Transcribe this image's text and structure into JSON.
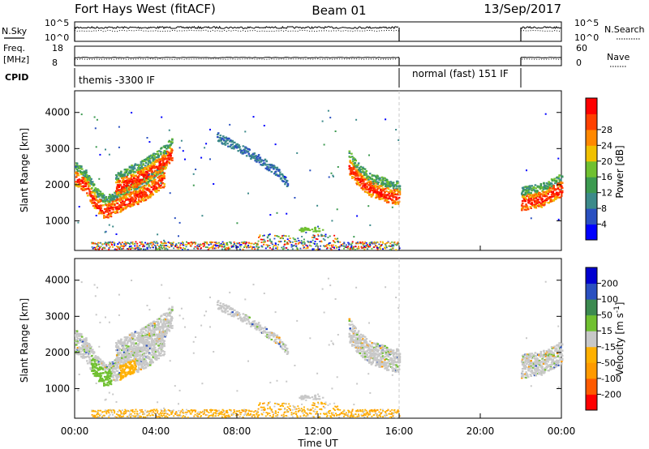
{
  "chart_data": {
    "type": "heatmap",
    "title": "Fort Hays West (fitACF)",
    "beam": "Beam 01",
    "date": "13/Sep/2017",
    "xlabel": "Time UT",
    "x_ticks": [
      "00:00",
      "04:00",
      "08:00",
      "12:00",
      "16:00",
      "20:00",
      "00:00"
    ],
    "x_range_hours": [
      0,
      24
    ],
    "top_panels": {
      "noise": {
        "left_label": "N.Sky",
        "right_label": "N.Search",
        "left_ticks": [
          "10^5",
          "10^0"
        ],
        "right_ticks": [
          "10^5",
          "10^0"
        ]
      },
      "freq": {
        "left_label_line1": "Freq.",
        "left_label_line2": "[MHz]",
        "right_label": "Nave",
        "left_ticks": [
          "18",
          "8"
        ],
        "right_ticks": [
          "60",
          "0"
        ]
      },
      "cpid": {
        "label": "CPID",
        "segments": [
          {
            "label": "themis -3300 IF",
            "start": 0,
            "end": 16
          },
          {
            "label": "normal (fast) 151 IF",
            "start": 16,
            "end": 22
          }
        ]
      }
    },
    "range_axis": {
      "label": "Slant Range [km]",
      "ticks": [
        1000,
        2000,
        3000,
        4000
      ],
      "range": [
        180,
        4600
      ]
    },
    "data_gap_hours": [
      16,
      22
    ],
    "power_panel": {
      "colorbar_label": "Power [dB]",
      "colorbar_ticks": [
        4,
        8,
        12,
        16,
        20,
        24,
        28
      ],
      "range": [
        0,
        32
      ],
      "colors": [
        "#0000ff",
        "#2a50c0",
        "#3c8a8a",
        "#3c9a50",
        "#70c030",
        "#f0c000",
        "#ff8800",
        "#ff4000",
        "#ff0000"
      ]
    },
    "velocity_panel": {
      "colorbar_label": "Velocity [m s",
      "colorbar_label_sup": "-1",
      "colorbar_label_end": "]",
      "colorbar_ticks": [
        "200",
        "100",
        "50",
        "15",
        "-15",
        "-50",
        "-100",
        "-200"
      ],
      "colors": [
        "#ff0000",
        "#ff5a00",
        "#ff9a00",
        "#ffb000",
        "#c8c8c8",
        "#70c030",
        "#3c8a50",
        "#2a50c0",
        "#0000d0"
      ]
    },
    "echo_regions": [
      {
        "name": "main-band",
        "points": [
          [
            0.0,
            2200
          ],
          [
            0.5,
            2000
          ],
          [
            1.0,
            1500
          ],
          [
            1.5,
            1250
          ],
          [
            2.0,
            1400
          ],
          [
            2.5,
            1550
          ],
          [
            3.0,
            1650
          ],
          [
            3.5,
            1800
          ],
          [
            4.0,
            2000
          ],
          [
            4.4,
            2150
          ]
        ]
      },
      {
        "name": "upper-band",
        "points": [
          [
            2.0,
            1900
          ],
          [
            2.5,
            2050
          ],
          [
            3.0,
            2150
          ],
          [
            3.5,
            2300
          ],
          [
            4.0,
            2500
          ],
          [
            4.4,
            2650
          ],
          [
            4.8,
            2900
          ]
        ]
      },
      {
        "name": "mid-cloud",
        "points": [
          [
            7.0,
            3300
          ],
          [
            8.0,
            3000
          ],
          [
            9.0,
            2700
          ],
          [
            10.0,
            2300
          ],
          [
            10.5,
            2000
          ]
        ]
      },
      {
        "name": "late-band",
        "points": [
          [
            13.5,
            2500
          ],
          [
            14.0,
            2150
          ],
          [
            14.5,
            1900
          ],
          [
            15.0,
            1800
          ],
          [
            15.5,
            1700
          ],
          [
            16.0,
            1650
          ]
        ]
      },
      {
        "name": "end-band",
        "points": [
          [
            22.0,
            1500
          ],
          [
            22.5,
            1550
          ],
          [
            23.0,
            1600
          ],
          [
            23.5,
            1750
          ],
          [
            24.0,
            1900
          ]
        ]
      }
    ]
  }
}
